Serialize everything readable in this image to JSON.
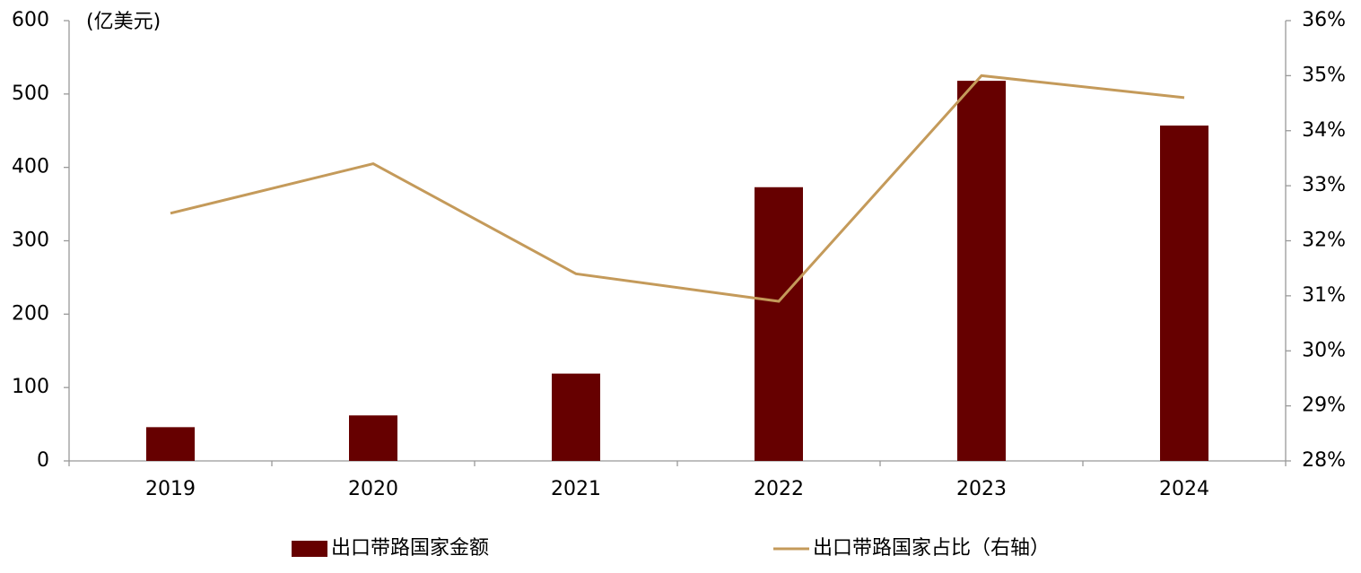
{
  "chart_data": {
    "type": "bar_line",
    "y_label": "(亿美元)",
    "categories": [
      "2019",
      "2020",
      "2021",
      "2022",
      "2023",
      "2024"
    ],
    "series": [
      {
        "name": "出口带路国家金额",
        "type": "bar",
        "color": "#660000",
        "values": [
          46,
          62,
          119,
          373,
          518,
          457
        ]
      },
      {
        "name": "出口带路国家占比（右轴）",
        "type": "line",
        "axis": "y2",
        "color": "#c49a5a",
        "values": [
          32.5,
          33.4,
          31.4,
          30.9,
          35.0,
          34.6
        ]
      }
    ],
    "ylim": [
      0,
      600
    ],
    "yticks": [
      0,
      100,
      200,
      300,
      400,
      500,
      600
    ],
    "y2lim": [
      28,
      36
    ],
    "y2ticks": [
      {
        "value": 28,
        "label": "28%"
      },
      {
        "value": 29,
        "label": "29%"
      },
      {
        "value": 30,
        "label": "30%"
      },
      {
        "value": 31,
        "label": "31%"
      },
      {
        "value": 32,
        "label": "32%"
      },
      {
        "value": 33,
        "label": "33%"
      },
      {
        "value": 34,
        "label": "34%"
      },
      {
        "value": 35,
        "label": "35%"
      },
      {
        "value": 36,
        "label": "36%"
      }
    ],
    "legend": "bottom"
  }
}
